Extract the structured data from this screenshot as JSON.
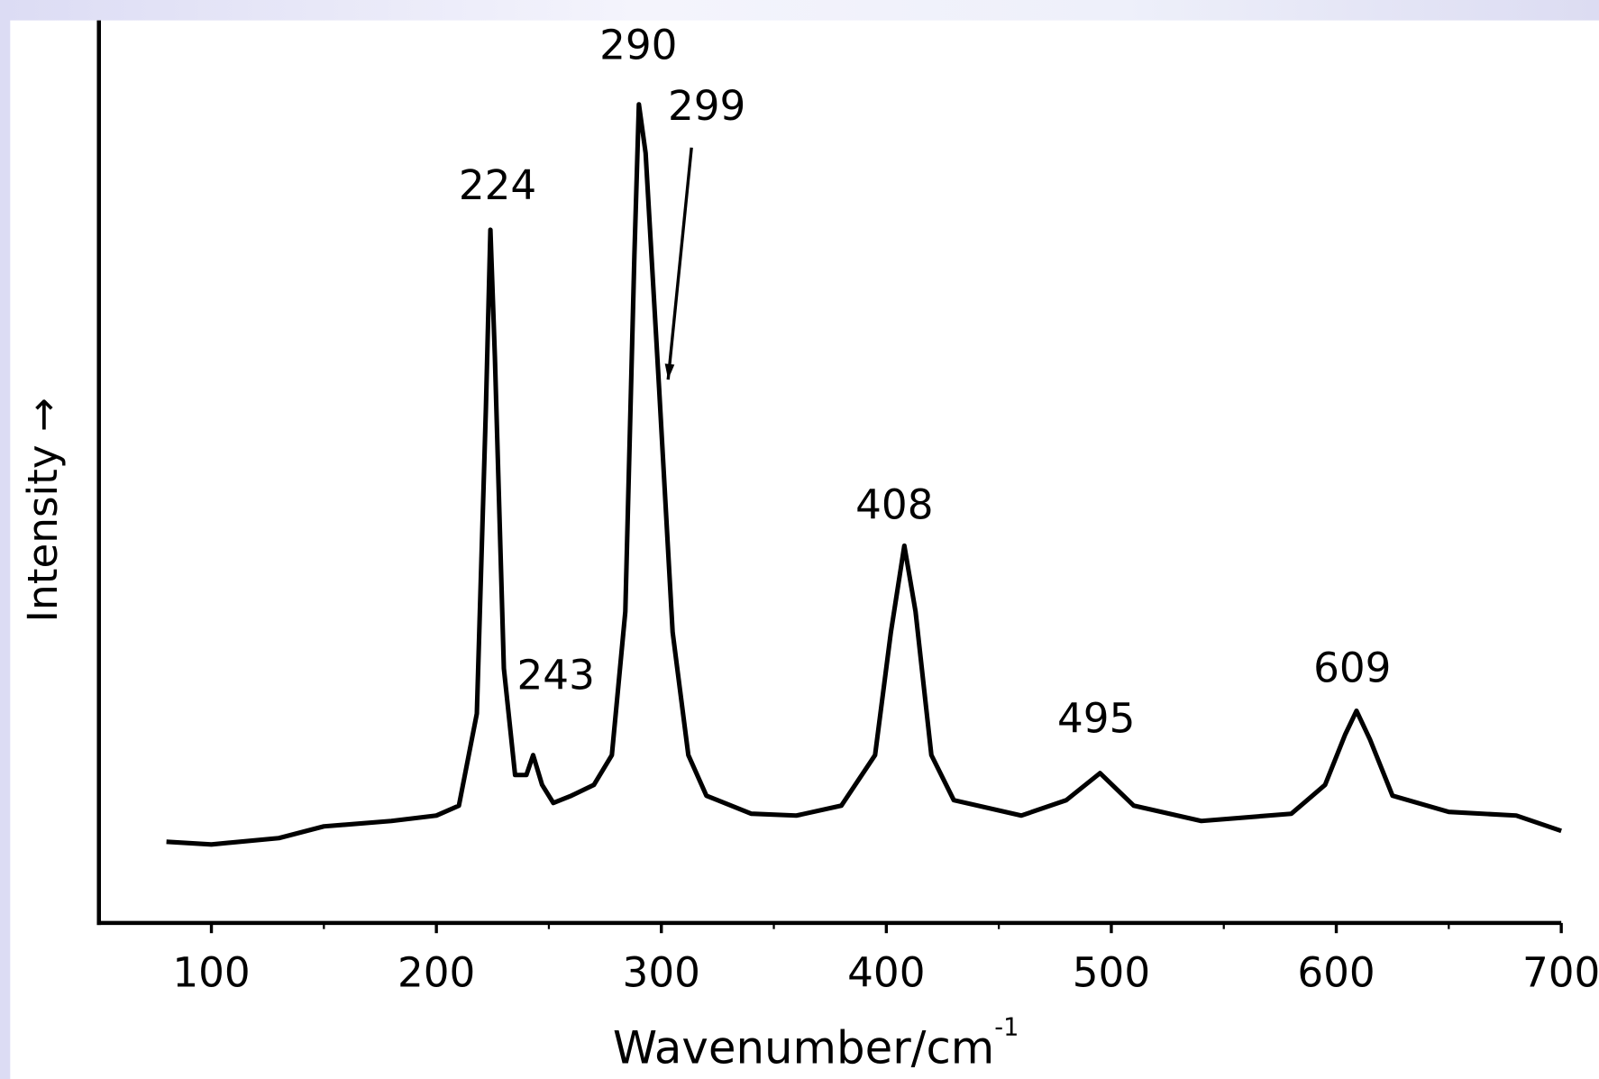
{
  "chart_data": {
    "type": "line",
    "x_label": "Wavenumber/cm",
    "x_label_sup": "-1",
    "y_label": "Intensity →",
    "xlim": [
      50,
      700
    ],
    "ylim": [
      0,
      100
    ],
    "xticks": [
      100,
      200,
      300,
      400,
      500,
      600,
      700
    ],
    "xticks_minor": [
      150,
      250,
      350,
      450,
      550,
      650
    ],
    "series": [
      {
        "color": "#000000",
        "x": [
          80,
          100,
          130,
          150,
          180,
          200,
          210,
          218,
          222,
          224,
          226,
          230,
          235,
          240,
          243,
          247,
          252,
          260,
          270,
          278,
          284,
          288,
          290,
          293,
          299,
          305,
          312,
          320,
          340,
          360,
          380,
          395,
          402,
          408,
          413,
          420,
          430,
          460,
          480,
          495,
          510,
          540,
          580,
          595,
          604,
          609,
          615,
          625,
          650,
          680,
          700
        ],
        "values": [
          9.0,
          8.7,
          9.4,
          10.7,
          11.3,
          11.9,
          13.0,
          23.2,
          57.1,
          76.8,
          62.7,
          28.2,
          16.4,
          16.4,
          18.6,
          15.3,
          13.3,
          14.1,
          15.3,
          18.6,
          34.5,
          74.0,
          90.7,
          85.3,
          59.3,
          32.2,
          18.6,
          14.1,
          12.1,
          11.9,
          13.0,
          18.6,
          32.2,
          41.8,
          34.5,
          18.6,
          13.6,
          11.9,
          13.6,
          16.6,
          13.0,
          11.3,
          12.1,
          15.3,
          20.9,
          23.5,
          20.3,
          14.1,
          12.3,
          11.9,
          10.2
        ]
      }
    ],
    "annotations": [
      {
        "text": "224",
        "x": 227.2,
        "y": 81.4
      },
      {
        "text": "243",
        "x": 253.1,
        "y": 27.1
      },
      {
        "text": "290",
        "x": 289.8,
        "y": 96.9
      },
      {
        "text": "299",
        "x": 320.2,
        "y": 90.2,
        "arrow_to": [
          303,
          60.2
        ]
      },
      {
        "text": "408",
        "x": 403.6,
        "y": 46.0
      },
      {
        "text": "495",
        "x": 493.3,
        "y": 22.3
      },
      {
        "text": "609",
        "x": 607.1,
        "y": 27.9
      }
    ]
  }
}
